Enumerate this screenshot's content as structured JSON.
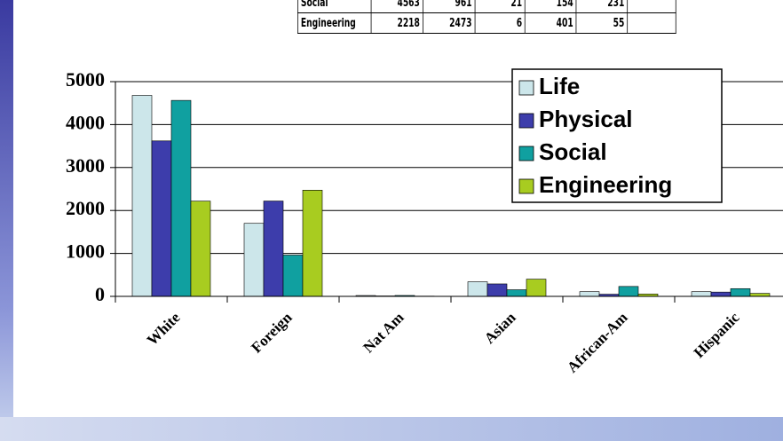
{
  "table": {
    "rows": [
      [
        "Social",
        4563,
        961,
        21,
        154,
        231
      ],
      [
        "Engineering",
        2218,
        2473,
        6,
        401,
        55
      ]
    ]
  },
  "chart_data": {
    "type": "bar",
    "categories": [
      "White",
      "Foreign",
      "Nat Am",
      "Asian",
      "African-Am",
      "Hispanic"
    ],
    "series": [
      {
        "name": "Life",
        "color": "#cce6ea",
        "values": [
          4680,
          1700,
          20,
          340,
          110,
          110
        ]
      },
      {
        "name": "Physical",
        "color": "#3d3dab",
        "values": [
          3620,
          2220,
          10,
          290,
          50,
          100
        ]
      },
      {
        "name": "Social",
        "color": "#10a0a0",
        "values": [
          4563,
          961,
          21,
          154,
          231,
          180
        ]
      },
      {
        "name": "Engineering",
        "color": "#a8cc20",
        "values": [
          2218,
          2473,
          6,
          401,
          55,
          70
        ]
      }
    ],
    "ylim": [
      0,
      5000
    ],
    "yticks": [
      0,
      1000,
      2000,
      3000,
      4000,
      5000
    ],
    "grid": true,
    "legend": "top-right"
  }
}
